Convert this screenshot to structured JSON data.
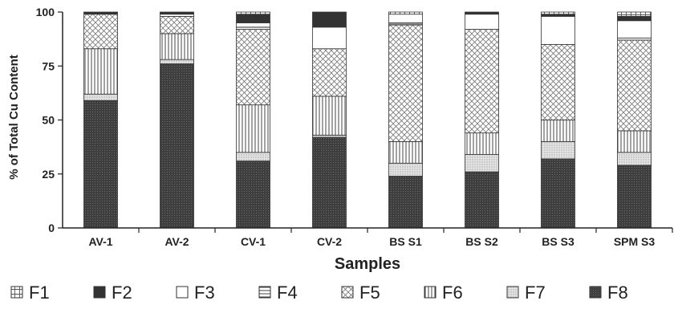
{
  "chart_data": {
    "type": "bar",
    "stacked": true,
    "title": "",
    "xlabel": "Samples",
    "ylabel": "% of Total Cu Content",
    "ylim": [
      0,
      100
    ],
    "yticks": [
      0,
      25,
      50,
      75,
      100
    ],
    "categories": [
      "AV-1",
      "AV-2",
      "CV-1",
      "CV-2",
      "BS S1",
      "BS S2",
      "BS S3",
      "SPM S3"
    ],
    "series": [
      {
        "name": "F8",
        "values": [
          59,
          76,
          31,
          42,
          24,
          26,
          32,
          29
        ]
      },
      {
        "name": "F7",
        "values": [
          3,
          2,
          4,
          1,
          6,
          8,
          8,
          6
        ]
      },
      {
        "name": "F6",
        "values": [
          21,
          12,
          22,
          18,
          10,
          10,
          10,
          10
        ]
      },
      {
        "name": "F5",
        "values": [
          16,
          8,
          35,
          22,
          54,
          48,
          35,
          42
        ]
      },
      {
        "name": "F4",
        "values": [
          0,
          0,
          1,
          0,
          1,
          0,
          0,
          1
        ]
      },
      {
        "name": "F3",
        "values": [
          0,
          1,
          2,
          10,
          4,
          7,
          13,
          8
        ]
      },
      {
        "name": "F2",
        "values": [
          1,
          1,
          4,
          7,
          0,
          1,
          1,
          2
        ]
      },
      {
        "name": "F1",
        "values": [
          0,
          0,
          1,
          0,
          1,
          0,
          1,
          2
        ]
      }
    ],
    "legend": {
      "position": "bottom",
      "order": [
        "F1",
        "F2",
        "F3",
        "F4",
        "F5",
        "F6",
        "F7",
        "F8"
      ]
    },
    "patterns": {
      "F1": "grid",
      "F2": "solid-dark",
      "F3": "white",
      "F4": "horizontal-lines",
      "F5": "crosshatch-diagonal",
      "F6": "vertical-lines",
      "F7": "fine-dots",
      "F8": "dark-dotted"
    }
  }
}
